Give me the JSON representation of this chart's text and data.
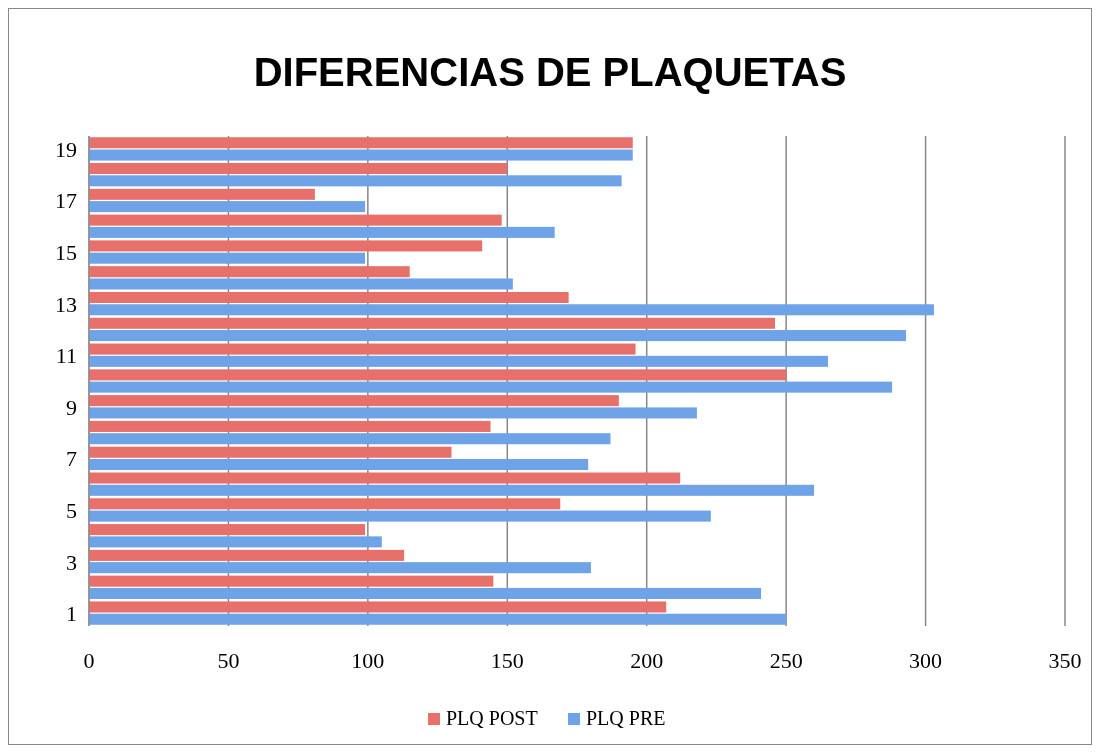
{
  "chart_data": {
    "type": "bar",
    "orientation": "horizontal",
    "title": "DIFERENCIAS DE PLAQUETAS",
    "categories": [
      "19",
      null,
      "17",
      null,
      "15",
      null,
      "13",
      null,
      "11",
      null,
      "9",
      null,
      "7",
      null,
      "5",
      null,
      "3",
      null,
      "1"
    ],
    "series": [
      {
        "name": "PLQ POST",
        "color": "#e8706a",
        "values": [
          195,
          150,
          81,
          148,
          141,
          115,
          172,
          246,
          196,
          250,
          190,
          144,
          130,
          212,
          169,
          99,
          113,
          145,
          207
        ]
      },
      {
        "name": "PLQ PRE",
        "color": "#6fa3e8",
        "values": [
          195,
          191,
          99,
          167,
          99,
          152,
          303,
          293,
          265,
          288,
          218,
          187,
          179,
          260,
          223,
          105,
          180,
          241,
          250
        ]
      }
    ],
    "xlim": [
      0,
      350
    ],
    "xticks": [
      0,
      50,
      100,
      150,
      200,
      250,
      300,
      350
    ],
    "grid": "x",
    "legend": "bottom"
  }
}
